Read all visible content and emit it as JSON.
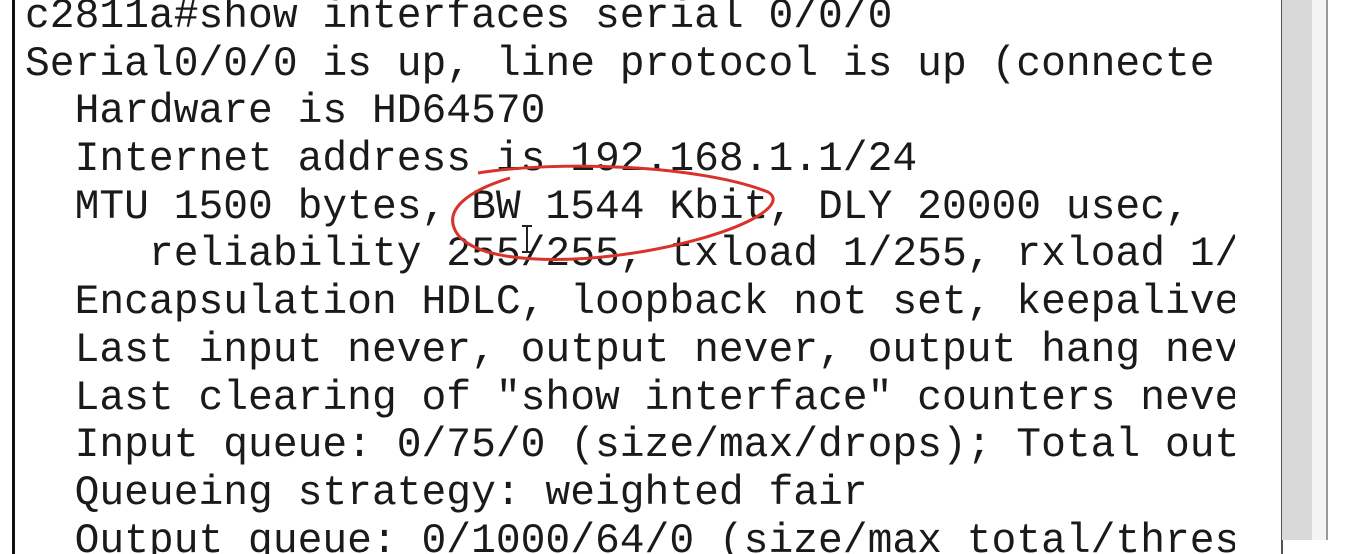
{
  "terminal": {
    "lines": [
      "c2811a#show interfaces serial 0/0/0",
      "Serial0/0/0 is up, line protocol is up (connecte",
      "  Hardware is HD64570",
      "  Internet address is 192.168.1.1/24",
      "  MTU 1500 bytes, BW 1544 Kbit, DLY 20000 usec,",
      "     reliability 255/255, txload 1/255, rxload 1/",
      "  Encapsulation HDLC, loopback not set, keepalive",
      "  Last input never, output never, output hang nev",
      "  Last clearing of \"show interface\" counters neve",
      "  Input queue: 0/75/0 (size/max/drops); Total out",
      "  Queueing strategy: weighted fair",
      "  Output queue: 0/1000/64/0 (size/max total/thres"
    ]
  }
}
